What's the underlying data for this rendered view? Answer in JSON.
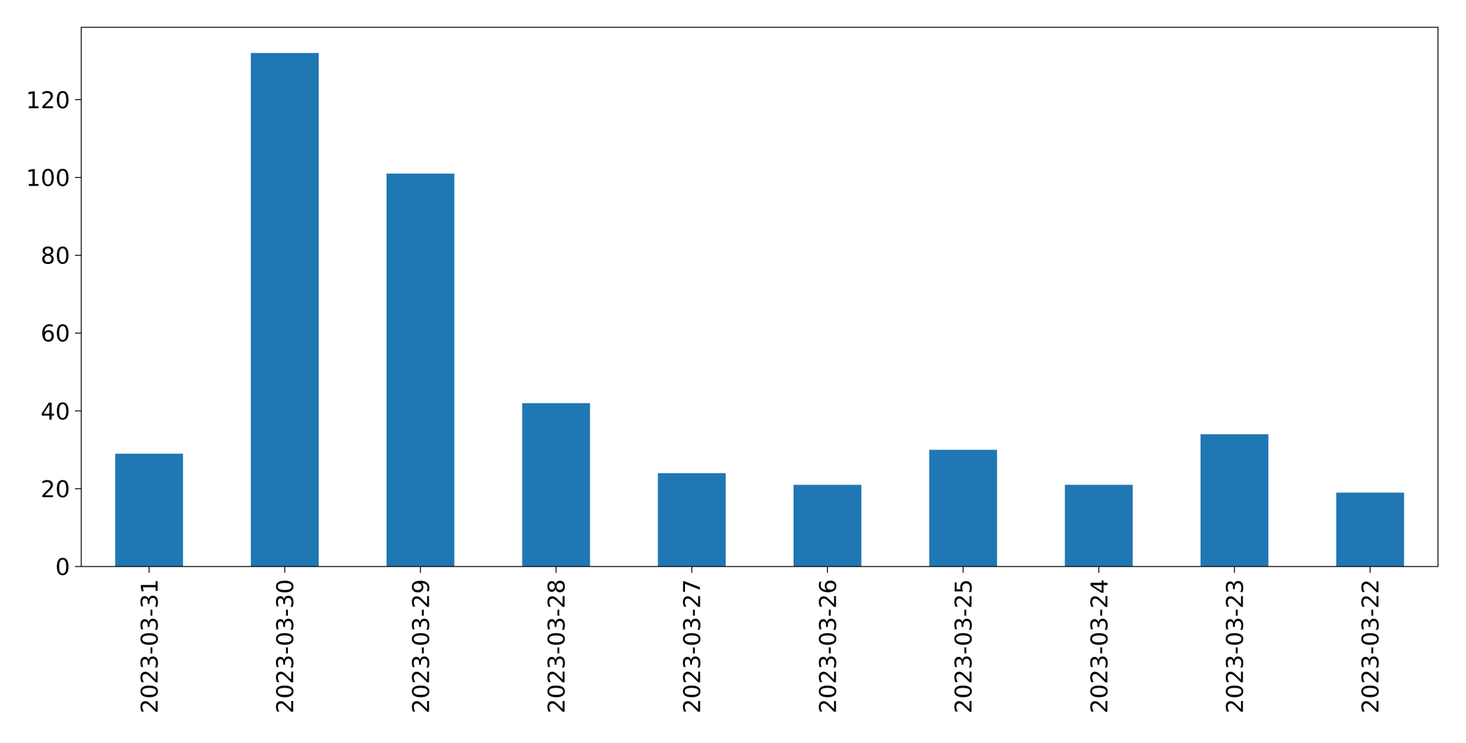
{
  "chart_data": {
    "type": "bar",
    "categories": [
      "2023-03-31",
      "2023-03-30",
      "2023-03-29",
      "2023-03-28",
      "2023-03-27",
      "2023-03-26",
      "2023-03-25",
      "2023-03-24",
      "2023-03-23",
      "2023-03-22"
    ],
    "values": [
      29,
      132,
      101,
      42,
      24,
      21,
      30,
      21,
      34,
      19
    ],
    "color": "#1f77b4",
    "ylim": [
      0,
      138.6
    ],
    "yticks": [
      0,
      20,
      40,
      60,
      80,
      100,
      120
    ],
    "grid": false
  }
}
